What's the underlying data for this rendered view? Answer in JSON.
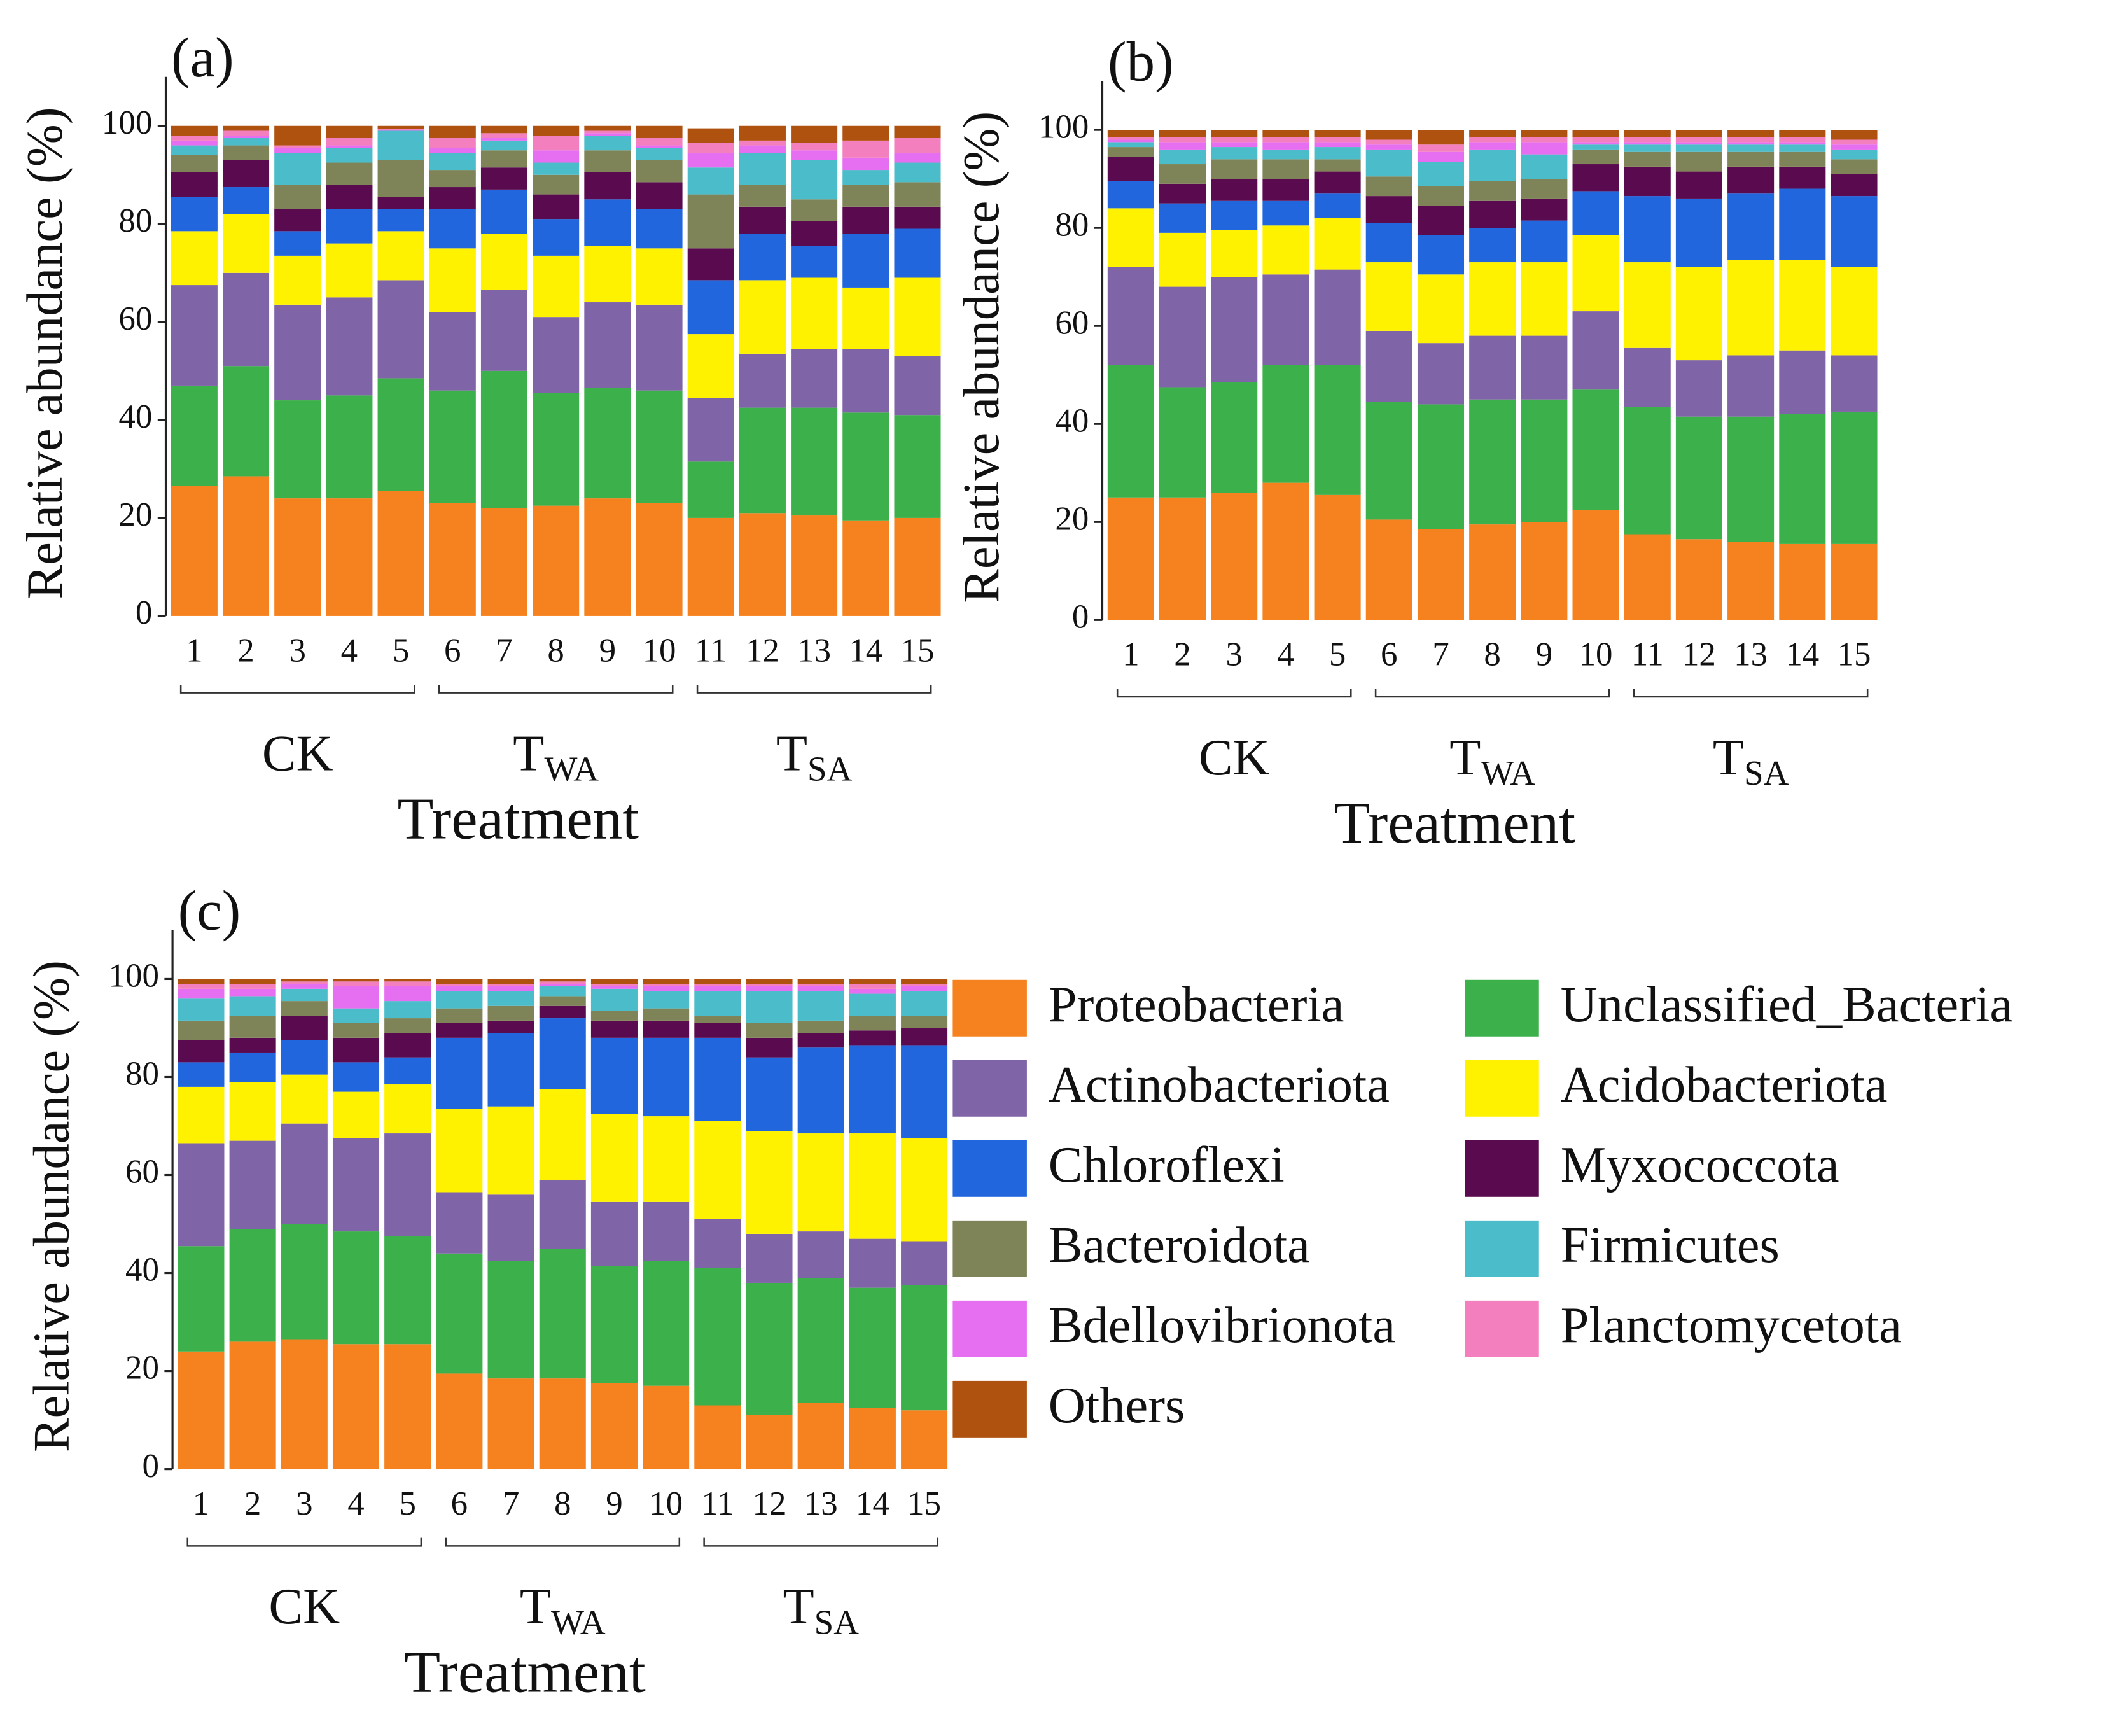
{
  "chart_data": [
    {
      "type": "stacked_bar",
      "panel_label": "(a)",
      "y_label": "Relative abundance (%)",
      "x_label": "Treatment",
      "categories": [
        "1",
        "2",
        "3",
        "4",
        "5",
        "6",
        "7",
        "8",
        "9",
        "10",
        "11",
        "12",
        "13",
        "14",
        "15"
      ],
      "groups": [
        {
          "text": "CK"
        },
        {
          "text": "T",
          "sub": "WA"
        },
        {
          "text": "T",
          "sub": "SA"
        }
      ],
      "ylim": [
        0,
        110
      ],
      "yticks": [
        0,
        20,
        40,
        60,
        80,
        100
      ],
      "series": [
        {
          "color": "#f5821f",
          "values": [
            26.5,
            28.5,
            24,
            24,
            25.5,
            23,
            22,
            22.5,
            24,
            23,
            20,
            21,
            20.5,
            19.5,
            20
          ]
        },
        {
          "color": "#3cb04a",
          "values": [
            20.5,
            22.5,
            20,
            21,
            23,
            23,
            28,
            23,
            22.5,
            23,
            11.5,
            21.5,
            22,
            22,
            21
          ]
        },
        {
          "color": "#8064a8",
          "values": [
            20.5,
            19,
            19.5,
            20,
            20,
            16,
            16.5,
            15.5,
            17.5,
            17.5,
            13,
            11,
            12,
            13,
            12
          ]
        },
        {
          "color": "#fff200",
          "values": [
            11,
            12,
            10,
            11,
            10,
            13,
            11.5,
            12.5,
            11.5,
            11.5,
            13,
            15,
            14.5,
            12.5,
            16
          ]
        },
        {
          "color": "#2266dd",
          "values": [
            7,
            5.5,
            5,
            7,
            4.5,
            8,
            9,
            7.5,
            9.5,
            8,
            11,
            9.5,
            6.5,
            11,
            10
          ]
        },
        {
          "color": "#5a0a4e",
          "values": [
            5,
            5.5,
            4.5,
            5,
            2.5,
            4.5,
            4.5,
            5,
            5.5,
            5.5,
            6.5,
            5.5,
            5,
            5.5,
            4.5
          ]
        },
        {
          "color": "#7f8458",
          "values": [
            3.5,
            3,
            5,
            4.5,
            7.5,
            3.5,
            3.5,
            4,
            4.5,
            4.5,
            11,
            4.5,
            4.5,
            4.5,
            5
          ]
        },
        {
          "color": "#4bbcc9",
          "values": [
            2,
            1.5,
            6.5,
            3,
            6,
            3.5,
            2,
            2.5,
            3,
            2.5,
            5.5,
            6.5,
            8,
            3,
            4
          ]
        },
        {
          "color": "#e66ef0",
          "values": [
            1,
            0.5,
            1,
            0.5,
            0.2,
            1,
            0.5,
            2.5,
            0.5,
            0.5,
            3,
            1.5,
            2,
            2.5,
            2
          ]
        },
        {
          "color": "#f47fbe",
          "values": [
            1,
            1,
            0.5,
            1.5,
            0.2,
            2,
            1,
            3,
            0.5,
            1.5,
            2,
            1,
            1.5,
            3.5,
            3
          ]
        },
        {
          "color": "#b0520f",
          "values": [
            2,
            1,
            4,
            2.5,
            0.6,
            2.5,
            1.5,
            2,
            1,
            2.5,
            3,
            3,
            3.5,
            3,
            2.5
          ]
        }
      ]
    },
    {
      "type": "stacked_bar",
      "panel_label": "(b)",
      "y_label": "Relative abundance (%)",
      "x_label": "Treatment",
      "categories": [
        "1",
        "2",
        "3",
        "4",
        "5",
        "6",
        "7",
        "8",
        "9",
        "10",
        "11",
        "12",
        "13",
        "14",
        "15"
      ],
      "groups": [
        {
          "text": "CK"
        },
        {
          "text": "T",
          "sub": "WA"
        },
        {
          "text": "T",
          "sub": "SA"
        }
      ],
      "ylim": [
        0,
        110
      ],
      "yticks": [
        0,
        20,
        40,
        60,
        80,
        100
      ],
      "series": [
        {
          "color": "#f5821f",
          "values": [
            25,
            25,
            26,
            28,
            25.5,
            20.5,
            18.5,
            19.5,
            20,
            22.5,
            17.5,
            16.5,
            16,
            15.5,
            15.5
          ]
        },
        {
          "color": "#3cb04a",
          "values": [
            27,
            22.5,
            22.5,
            24,
            26.5,
            24,
            25.5,
            25.5,
            25,
            24.5,
            26,
            25,
            25.5,
            26.5,
            27
          ]
        },
        {
          "color": "#8064a8",
          "values": [
            20,
            20.5,
            21.5,
            18.5,
            19.5,
            14.5,
            12.5,
            13,
            13,
            16,
            12,
            11.5,
            12.5,
            13,
            11.5
          ]
        },
        {
          "color": "#fff200",
          "values": [
            12,
            11,
            9.5,
            10,
            10.5,
            14,
            14,
            15,
            15,
            15.5,
            17.5,
            19,
            19.5,
            18.5,
            18
          ]
        },
        {
          "color": "#2266dd",
          "values": [
            5.5,
            6,
            6,
            5,
            5,
            8,
            8,
            7,
            8.5,
            9,
            13.5,
            14,
            13.5,
            14.5,
            14.5
          ]
        },
        {
          "color": "#5a0a4e",
          "values": [
            5,
            4,
            4.5,
            4.5,
            4.5,
            5.5,
            6,
            5.5,
            4.5,
            5.5,
            6,
            5.5,
            5.5,
            4.5,
            4.5
          ]
        },
        {
          "color": "#7f8458",
          "values": [
            2,
            4,
            4,
            4,
            2.5,
            4,
            4,
            4,
            4,
            3,
            3,
            4,
            3,
            3,
            3
          ]
        },
        {
          "color": "#4bbcc9",
          "values": [
            1,
            3,
            2.5,
            2,
            2.5,
            5.5,
            5,
            6.5,
            5,
            1,
            1.5,
            1.5,
            1.5,
            1.5,
            2
          ]
        },
        {
          "color": "#e66ef0",
          "values": [
            0.5,
            1.5,
            1,
            1.5,
            1,
            1,
            2,
            1.5,
            2.5,
            0.5,
            0.5,
            0.5,
            0.5,
            0.5,
            1
          ]
        },
        {
          "color": "#f47fbe",
          "values": [
            0.5,
            1,
            1,
            1,
            1,
            1,
            1.5,
            1,
            1,
            1,
            1,
            1,
            1,
            1,
            1
          ]
        },
        {
          "color": "#b0520f",
          "values": [
            1.5,
            1.5,
            1.5,
            1.5,
            1.5,
            2,
            3,
            1.5,
            1.5,
            1.5,
            1.5,
            1.5,
            1.5,
            1.5,
            2
          ]
        }
      ]
    },
    {
      "type": "stacked_bar",
      "panel_label": "(c)",
      "y_label": "Relative abundance (%)",
      "x_label": "Treatment",
      "categories": [
        "1",
        "2",
        "3",
        "4",
        "5",
        "6",
        "7",
        "8",
        "9",
        "10",
        "11",
        "12",
        "13",
        "14",
        "15"
      ],
      "groups": [
        {
          "text": "CK"
        },
        {
          "text": "T",
          "sub": "WA"
        },
        {
          "text": "T",
          "sub": "SA"
        }
      ],
      "ylim": [
        0,
        110
      ],
      "yticks": [
        0,
        20,
        40,
        60,
        80,
        100
      ],
      "legend": true,
      "series": [
        {
          "name": "Proteobacteria",
          "color": "#f5821f",
          "values": [
            24,
            26,
            26.5,
            25.5,
            25.5,
            19.5,
            18.5,
            18.5,
            17.5,
            17,
            13,
            11,
            13.5,
            12.5,
            12
          ]
        },
        {
          "name": "Unclassified_Bacteria",
          "color": "#3cb04a",
          "values": [
            21.5,
            23,
            23.5,
            23,
            22,
            24.5,
            24,
            26.5,
            24,
            25.5,
            28,
            27,
            25.5,
            24.5,
            25.5
          ]
        },
        {
          "name": "Actinobacteriota",
          "color": "#8064a8",
          "values": [
            21,
            18,
            20.5,
            19,
            21,
            12.5,
            13.5,
            14,
            13,
            12,
            10,
            10,
            9.5,
            10,
            9
          ]
        },
        {
          "name": "Acidobacteriota",
          "color": "#fff200",
          "values": [
            11.5,
            12,
            10,
            9.5,
            10,
            17,
            18,
            18.5,
            18,
            17.5,
            20,
            21,
            20,
            21.5,
            21
          ]
        },
        {
          "name": "Chloroflexi",
          "color": "#2266dd",
          "values": [
            5,
            6,
            7,
            6,
            5.5,
            14.5,
            15,
            14.5,
            15.5,
            16,
            17,
            15,
            17.5,
            18,
            19
          ]
        },
        {
          "name": "Myxococcota",
          "color": "#5a0a4e",
          "values": [
            4.5,
            3,
            5,
            5,
            5,
            3,
            2.5,
            2.5,
            3.5,
            3.5,
            3,
            4,
            3,
            3,
            3.5
          ]
        },
        {
          "name": "Bacteroidota",
          "color": "#7f8458",
          "values": [
            4,
            4.5,
            3,
            3,
            3,
            3,
            3,
            2,
            2,
            2.5,
            1.5,
            3,
            2.5,
            3,
            2.5
          ]
        },
        {
          "name": "Firmicutes",
          "color": "#4bbcc9",
          "values": [
            4.5,
            4,
            2.5,
            3,
            3.5,
            3.5,
            3,
            2,
            4.5,
            3.5,
            5,
            6.5,
            6,
            4.5,
            5
          ]
        },
        {
          "name": "Bdellovibrionota",
          "color": "#e66ef0",
          "values": [
            2,
            1.5,
            1,
            4.5,
            3,
            1,
            1,
            0.5,
            0.5,
            1,
            1,
            1,
            1,
            1,
            1
          ]
        },
        {
          "name": "Planctomycetota",
          "color": "#f47fbe",
          "values": [
            1,
            1,
            0.5,
            1,
            1,
            0.5,
            0.5,
            0.5,
            0.5,
            0.5,
            0.5,
            0.5,
            0.5,
            1,
            0.5
          ]
        },
        {
          "name": "Others",
          "color": "#b0520f",
          "values": [
            1,
            1,
            0.5,
            0.5,
            0.5,
            1,
            1,
            0.5,
            1,
            1,
            1,
            1,
            1,
            1,
            1
          ]
        }
      ]
    }
  ]
}
